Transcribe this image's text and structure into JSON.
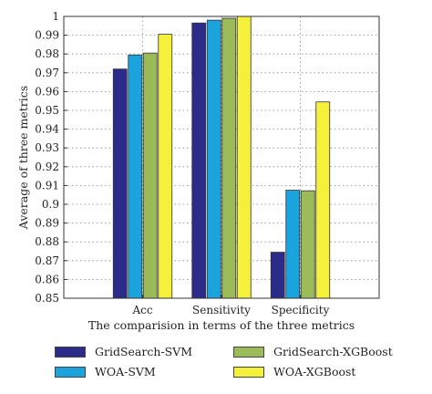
{
  "chart_data": {
    "type": "bar",
    "categories": [
      "Acc",
      "Sensitivity",
      "Specificity"
    ],
    "series": [
      {
        "name": "GridSearch-SVM",
        "values": [
          0.972,
          0.9965,
          0.8745
        ],
        "color": "#2b2b8a"
      },
      {
        "name": "WOA-SVM",
        "values": [
          0.9795,
          0.998,
          0.9075
        ],
        "color": "#1aa3dc"
      },
      {
        "name": "GridSearch-XGBoost",
        "values": [
          0.9805,
          0.999,
          0.9072
        ],
        "color": "#9bbb59"
      },
      {
        "name": "WOA-XGBoost",
        "values": [
          0.9905,
          1.0,
          0.9545
        ],
        "color": "#f5f03a"
      }
    ],
    "xlabel": "The comparision in terms of the three metrics",
    "ylabel": "Average of three metrics",
    "ylim": [
      0.85,
      1.0
    ],
    "yticks": [
      "0.85",
      "0.86",
      "0.87",
      "0.88",
      "0.89",
      "0.9",
      "0.91",
      "0.92",
      "0.93",
      "0.94",
      "0.95",
      "0.96",
      "0.97",
      "0.98",
      "0.99",
      "1"
    ],
    "grid": true,
    "legend_position": "bottom"
  }
}
